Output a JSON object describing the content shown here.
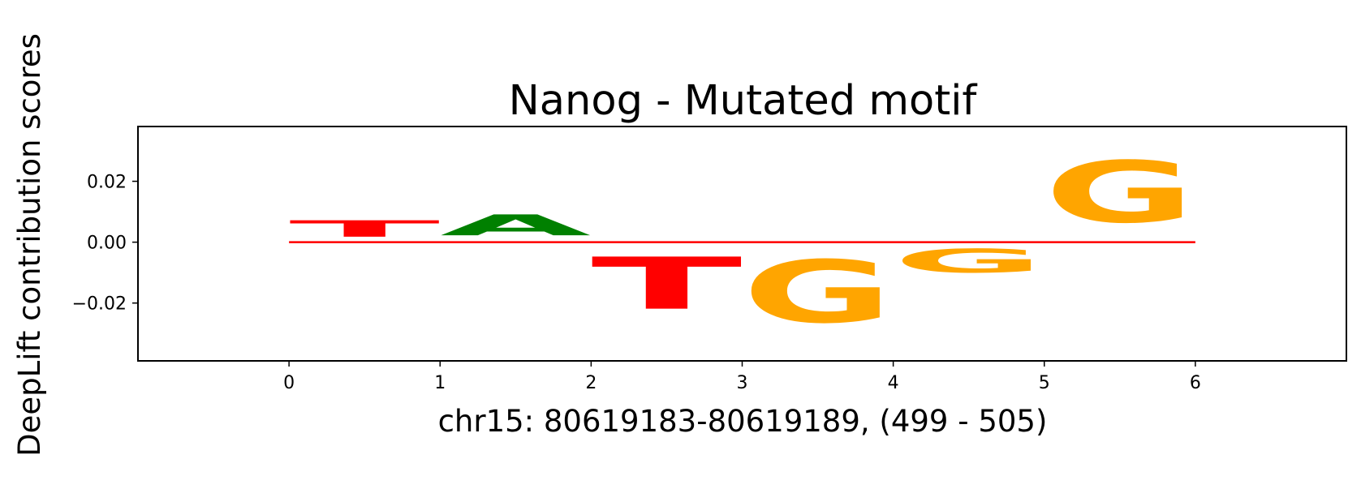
{
  "chart_data": {
    "type": "sequence-logo",
    "title": "Nanog - Mutated motif",
    "xlabel": "chr15: 80619183-80619189, (499 - 505)",
    "ylabel": "DeepLift contribution scores",
    "xlim": [
      -1,
      7
    ],
    "ylim": [
      -0.039,
      0.038
    ],
    "x_ticks": [
      "0",
      "1",
      "2",
      "3",
      "4",
      "5",
      "6"
    ],
    "y_ticks": [
      "0.02",
      "0.00",
      "−0.02"
    ],
    "y_tick_values": [
      0.02,
      0.0,
      -0.02
    ],
    "letter_colors": {
      "A": "#008000",
      "C": "#0000ff",
      "G": "#ffa500",
      "T": "#ff0000"
    },
    "positions": [
      {
        "index": 0,
        "letter": "T",
        "score": 0.0087
      },
      {
        "index": 1,
        "letter": "A",
        "score": 0.011
      },
      {
        "index": 2,
        "letter": "T",
        "score": -0.0275
      },
      {
        "index": 3,
        "letter": "G",
        "score": -0.033
      },
      {
        "index": 4,
        "letter": "G",
        "score": -0.0125
      },
      {
        "index": 5,
        "letter": "G",
        "score": 0.0325
      }
    ]
  }
}
